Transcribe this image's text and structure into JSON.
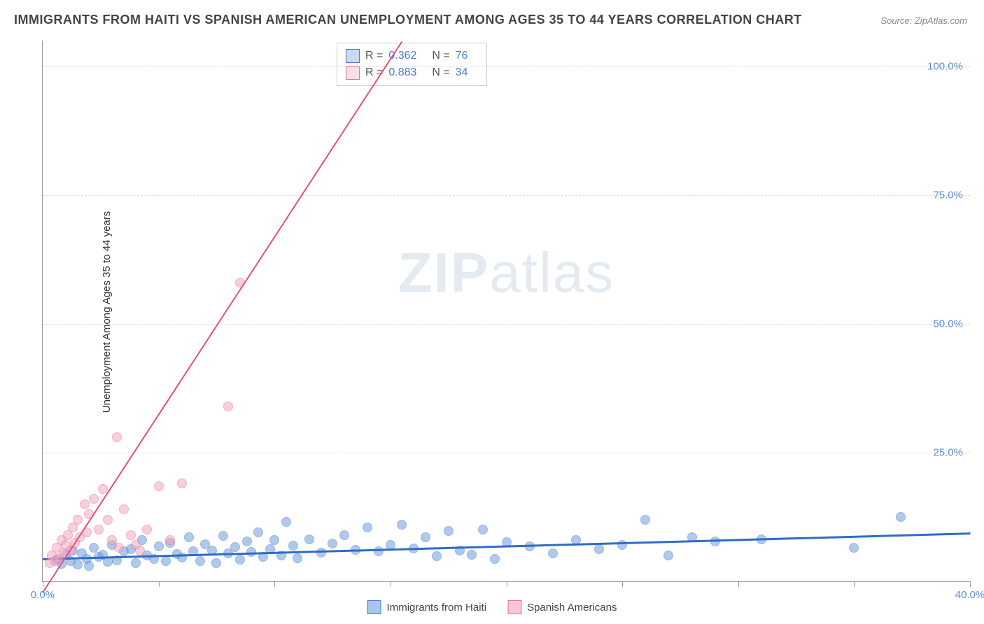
{
  "title": "IMMIGRANTS FROM HAITI VS SPANISH AMERICAN UNEMPLOYMENT AMONG AGES 35 TO 44 YEARS CORRELATION CHART",
  "source": "Source: ZipAtlas.com",
  "ylabel": "Unemployment Among Ages 35 to 44 years",
  "watermark_a": "ZIP",
  "watermark_b": "atlas",
  "chart": {
    "type": "scatter",
    "xlim": [
      0,
      40
    ],
    "ylim": [
      0,
      105
    ],
    "ytick_values": [
      25,
      50,
      75,
      100
    ],
    "ytick_labels": [
      "25.0%",
      "50.0%",
      "75.0%",
      "100.0%"
    ],
    "xtick_values": [
      0,
      5,
      10,
      15,
      20,
      25,
      30,
      35,
      40
    ],
    "xtick_labels_shown": {
      "0": "0.0%",
      "40": "40.0%"
    },
    "background_color": "#ffffff",
    "grid_color": "#dddddd",
    "axis_color": "#999999",
    "marker_radius": 7,
    "marker_opacity": 0.55,
    "series": [
      {
        "name": "Immigrants from Haiti",
        "color_fill": "#6f9ede",
        "color_stroke": "#4a7bc8",
        "R": "0.362",
        "N": "76",
        "trend": {
          "x1": 0,
          "y1": 4.5,
          "x2": 40,
          "y2": 9.5,
          "color": "#2d6cc9",
          "width": 2.5
        },
        "points": [
          [
            0.6,
            4.2
          ],
          [
            0.8,
            3.4
          ],
          [
            1.0,
            5.1
          ],
          [
            1.2,
            4.0
          ],
          [
            1.3,
            6.0
          ],
          [
            1.5,
            3.2
          ],
          [
            1.7,
            5.5
          ],
          [
            1.9,
            4.3
          ],
          [
            2.0,
            3.0
          ],
          [
            2.2,
            6.5
          ],
          [
            2.4,
            4.8
          ],
          [
            2.6,
            5.2
          ],
          [
            2.8,
            3.8
          ],
          [
            3.0,
            7.0
          ],
          [
            3.2,
            4.1
          ],
          [
            3.5,
            5.8
          ],
          [
            3.8,
            6.2
          ],
          [
            4.0,
            3.5
          ],
          [
            4.3,
            8.0
          ],
          [
            4.5,
            5.0
          ],
          [
            4.8,
            4.4
          ],
          [
            5.0,
            6.8
          ],
          [
            5.3,
            3.9
          ],
          [
            5.5,
            7.5
          ],
          [
            5.8,
            5.3
          ],
          [
            6.0,
            4.6
          ],
          [
            6.3,
            8.5
          ],
          [
            6.5,
            5.9
          ],
          [
            6.8,
            4.0
          ],
          [
            7.0,
            7.2
          ],
          [
            7.3,
            6.0
          ],
          [
            7.5,
            3.6
          ],
          [
            7.8,
            8.8
          ],
          [
            8.0,
            5.4
          ],
          [
            8.3,
            6.6
          ],
          [
            8.5,
            4.2
          ],
          [
            8.8,
            7.8
          ],
          [
            9.0,
            5.7
          ],
          [
            9.3,
            9.5
          ],
          [
            9.5,
            4.8
          ],
          [
            9.8,
            6.3
          ],
          [
            10.0,
            8.0
          ],
          [
            10.3,
            5.0
          ],
          [
            10.5,
            11.5
          ],
          [
            10.8,
            6.9
          ],
          [
            11.0,
            4.5
          ],
          [
            11.5,
            8.2
          ],
          [
            12.0,
            5.6
          ],
          [
            12.5,
            7.4
          ],
          [
            13.0,
            9.0
          ],
          [
            13.5,
            6.1
          ],
          [
            14.0,
            10.5
          ],
          [
            14.5,
            5.8
          ],
          [
            15.0,
            7.0
          ],
          [
            15.5,
            11.0
          ],
          [
            16.0,
            6.4
          ],
          [
            16.5,
            8.6
          ],
          [
            17.0,
            4.9
          ],
          [
            17.5,
            9.8
          ],
          [
            18.0,
            6.0
          ],
          [
            18.5,
            5.2
          ],
          [
            19.0,
            10.0
          ],
          [
            19.5,
            4.3
          ],
          [
            20.0,
            7.6
          ],
          [
            21.0,
            6.8
          ],
          [
            22.0,
            5.5
          ],
          [
            23.0,
            8.0
          ],
          [
            24.0,
            6.2
          ],
          [
            25.0,
            7.0
          ],
          [
            26.0,
            12.0
          ],
          [
            27.0,
            5.0
          ],
          [
            28.0,
            8.5
          ],
          [
            29.0,
            7.8
          ],
          [
            31.0,
            8.2
          ],
          [
            35.0,
            6.5
          ],
          [
            37.0,
            12.5
          ]
        ]
      },
      {
        "name": "Spanish Americans",
        "color_fill": "#f4a8c0",
        "color_stroke": "#e76f9b",
        "R": "0.883",
        "N": "34",
        "trend": {
          "x1": 0,
          "y1": -2,
          "x2": 15.5,
          "y2": 105,
          "color": "#e44d85",
          "width": 2
        },
        "points": [
          [
            0.3,
            3.5
          ],
          [
            0.4,
            5.0
          ],
          [
            0.5,
            4.0
          ],
          [
            0.6,
            6.5
          ],
          [
            0.7,
            4.5
          ],
          [
            0.8,
            8.0
          ],
          [
            0.9,
            5.5
          ],
          [
            1.0,
            7.0
          ],
          [
            1.1,
            9.0
          ],
          [
            1.2,
            6.0
          ],
          [
            1.3,
            10.5
          ],
          [
            1.4,
            7.5
          ],
          [
            1.5,
            12.0
          ],
          [
            1.6,
            8.5
          ],
          [
            1.8,
            15.0
          ],
          [
            1.9,
            9.5
          ],
          [
            2.0,
            13.0
          ],
          [
            2.2,
            16.0
          ],
          [
            2.4,
            10.0
          ],
          [
            2.6,
            18.0
          ],
          [
            2.8,
            12.0
          ],
          [
            3.0,
            8.0
          ],
          [
            3.3,
            6.5
          ],
          [
            3.5,
            14.0
          ],
          [
            3.8,
            9.0
          ],
          [
            4.0,
            7.0
          ],
          [
            4.5,
            10.0
          ],
          [
            5.0,
            18.5
          ],
          [
            5.5,
            8.0
          ],
          [
            3.2,
            28.0
          ],
          [
            6.0,
            19.0
          ],
          [
            8.0,
            34.0
          ],
          [
            8.5,
            58.0
          ],
          [
            4.2,
            6.0
          ]
        ]
      }
    ]
  },
  "legend": {
    "items": [
      {
        "label": "Immigrants from Haiti",
        "fill": "#a7c5ed",
        "stroke": "#4a7bc8"
      },
      {
        "label": "Spanish Americans",
        "fill": "#f8c7d7",
        "stroke": "#e76f9b"
      }
    ]
  }
}
